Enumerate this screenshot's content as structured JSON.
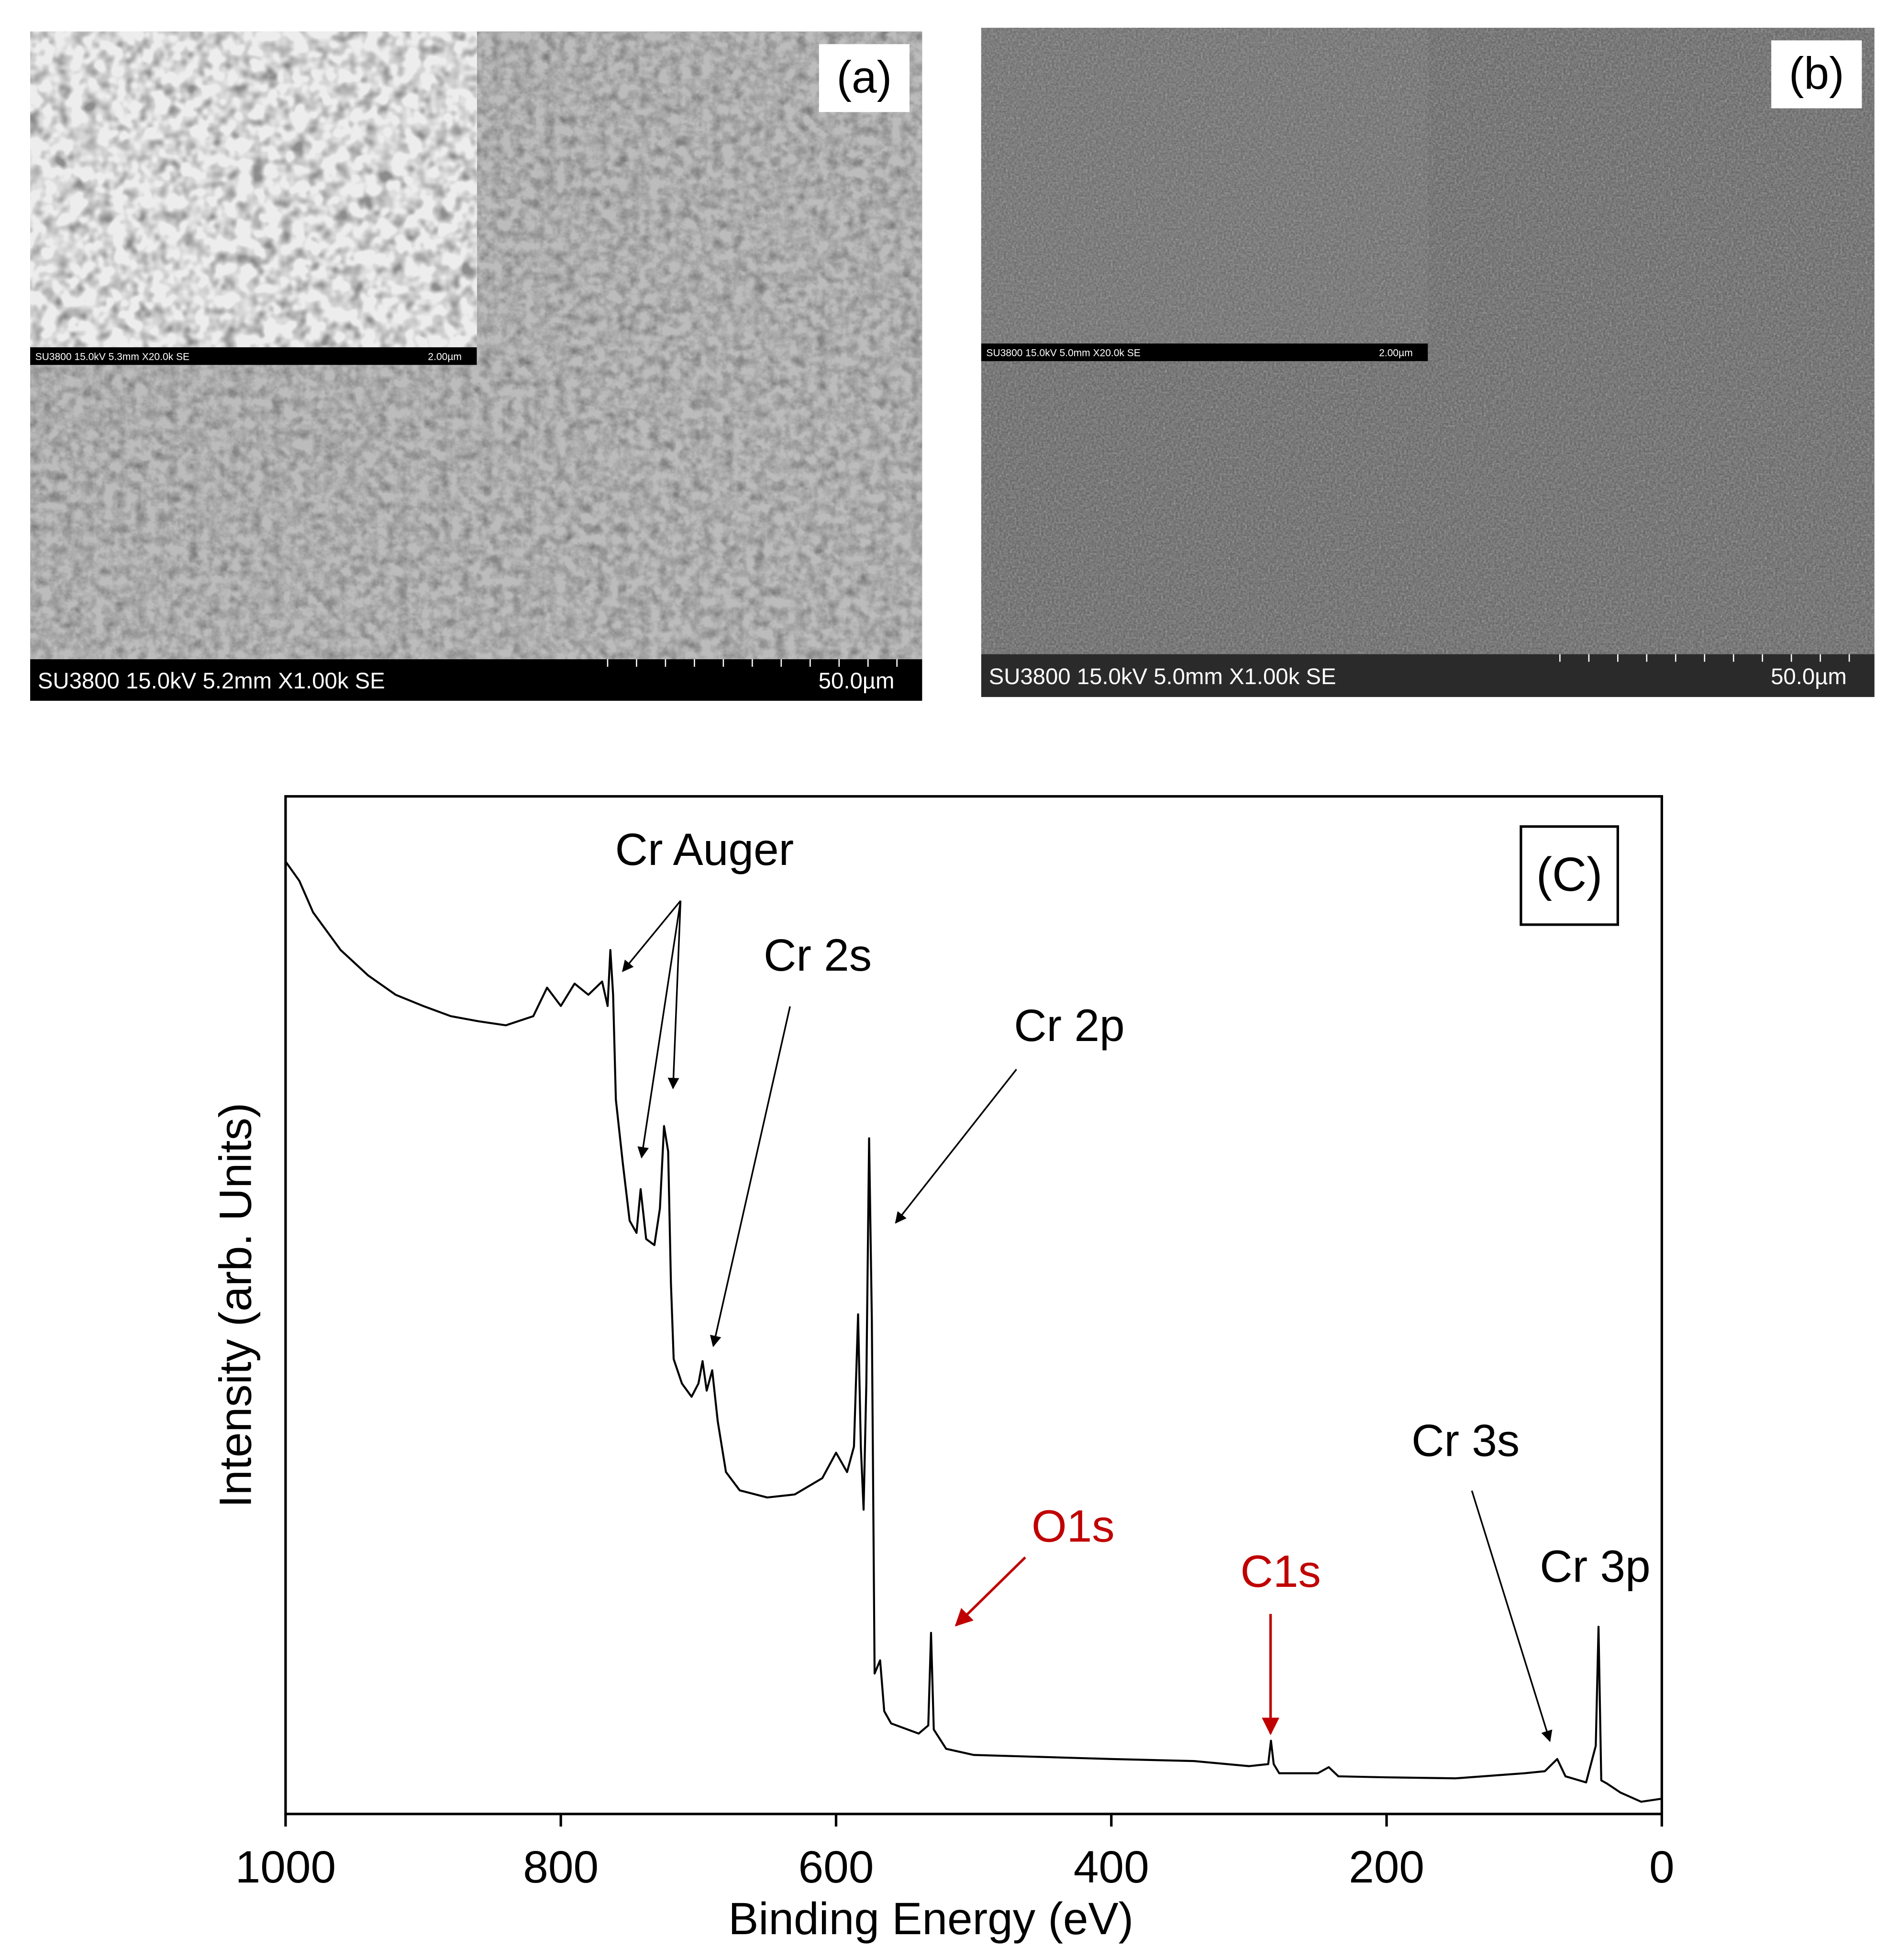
{
  "panels": [
    {
      "label": "(a)",
      "caption": "SU3800 15.0kV 5.2mm X1.00k SE",
      "scale": "50.0µm",
      "inset_caption": "SU3800 15.0kV 5.3mm X20.0k SE",
      "inset_scale": "2.00µm"
    },
    {
      "label": "(b)",
      "caption": "SU3800 15.0kV 5.0mm X1.00k SE",
      "scale": "50.0µm",
      "inset_caption": "SU3800 15.0kV 5.0mm X20.0k SE",
      "inset_scale": "2.00µm"
    }
  ],
  "chart_data": {
    "type": "line",
    "label": "(C)",
    "xlabel": "Binding Energy (eV)",
    "ylabel": "Intensity (arb. Units)",
    "xlim": [
      1000,
      0
    ],
    "xticks": [
      1000,
      800,
      600,
      400,
      200,
      0
    ],
    "ylim": [
      0,
      100
    ],
    "color": "#000000",
    "x": [
      1000,
      990,
      980,
      960,
      940,
      920,
      900,
      880,
      860,
      840,
      820,
      810,
      800,
      790,
      780,
      770,
      766,
      764,
      762,
      760,
      755,
      750,
      745,
      742,
      738,
      732,
      728,
      725,
      722,
      720,
      718,
      712,
      705,
      700,
      697,
      694,
      690,
      686,
      680,
      670,
      650,
      630,
      610,
      600,
      592,
      587,
      584,
      582,
      580,
      578,
      576,
      574,
      572,
      568,
      565,
      560,
      540,
      533,
      531,
      529,
      520,
      500,
      400,
      340,
      300,
      286,
      284,
      282,
      278,
      250,
      242,
      235,
      200,
      150,
      100,
      85,
      76,
      70,
      55,
      48,
      46,
      44,
      40,
      30,
      15,
      0
    ],
    "values": [
      93.6,
      91.7,
      88.6,
      84.9,
      82.4,
      80.5,
      79.4,
      78.4,
      77.9,
      77.5,
      78.4,
      81.2,
      79.4,
      81.6,
      80.5,
      81.8,
      79.4,
      84.9,
      80.5,
      70.2,
      64.0,
      58.3,
      57.1,
      61.4,
      56.5,
      55.9,
      59.5,
      67.6,
      65.1,
      52.2,
      44.7,
      42.3,
      41.0,
      42.3,
      44.5,
      41.6,
      43.6,
      38.6,
      33.6,
      31.8,
      31.1,
      31.4,
      33.0,
      35.5,
      33.6,
      36.1,
      49.1,
      36.1,
      29.9,
      42.3,
      66.4,
      48.5,
      13.8,
      15.1,
      10.1,
      8.9,
      7.9,
      8.7,
      17.8,
      8.3,
      6.4,
      5.8,
      5.4,
      5.2,
      4.7,
      4.9,
      7.2,
      4.9,
      4.0,
      4.0,
      4.6,
      3.7,
      3.6,
      3.5,
      4.0,
      4.2,
      5.4,
      3.7,
      3.1,
      6.7,
      18.4,
      3.3,
      3.0,
      2.1,
      1.2,
      1.5
    ],
    "annotations": [
      {
        "text": "Cr Auger",
        "color": "#000000"
      },
      {
        "text": "Cr 2s",
        "color": "#000000"
      },
      {
        "text": "Cr 2p",
        "color": "#000000"
      },
      {
        "text": "O1s",
        "color": "#c00000"
      },
      {
        "text": "C1s",
        "color": "#c00000"
      },
      {
        "text": "Cr 3s",
        "color": "#000000"
      },
      {
        "text": "Cr 3p",
        "color": "#000000"
      }
    ]
  }
}
